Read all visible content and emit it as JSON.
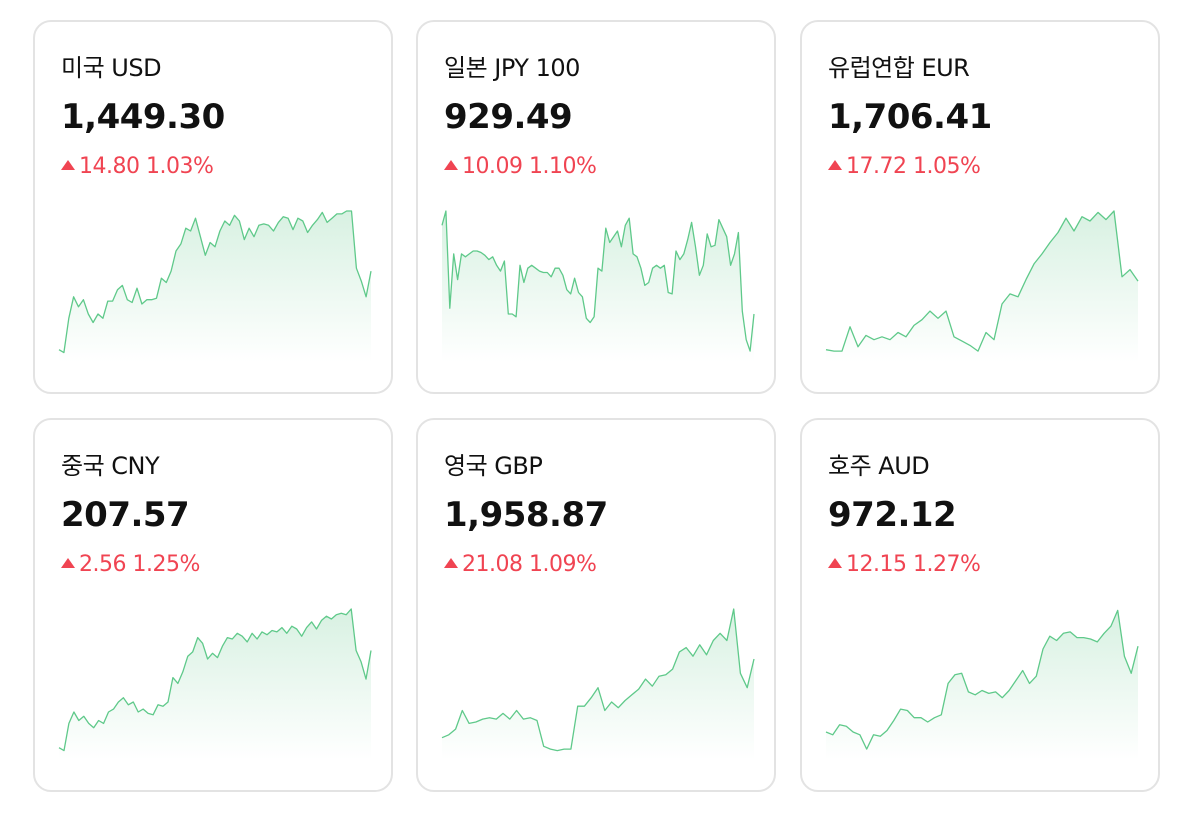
{
  "cards": [
    {
      "name": "미국 USD",
      "price": "1,449.30",
      "change_amount": "14.80",
      "change_percent": "1.03%",
      "direction_icon": "triangle-up-icon",
      "trend": [
        0.03,
        0.01,
        0.25,
        0.4,
        0.33,
        0.38,
        0.28,
        0.22,
        0.28,
        0.25,
        0.37,
        0.37,
        0.45,
        0.48,
        0.38,
        0.36,
        0.46,
        0.35,
        0.38,
        0.38,
        0.39,
        0.53,
        0.5,
        0.58,
        0.72,
        0.77,
        0.88,
        0.86,
        0.95,
        0.82,
        0.69,
        0.78,
        0.75,
        0.86,
        0.93,
        0.9,
        0.97,
        0.93,
        0.8,
        0.88,
        0.82,
        0.9,
        0.91,
        0.9,
        0.86,
        0.92,
        0.96,
        0.95,
        0.87,
        0.95,
        0.93,
        0.85,
        0.9,
        0.94,
        0.99,
        0.92,
        0.95,
        0.98,
        0.98,
        1.0,
        1.0,
        0.6,
        0.51,
        0.4,
        0.58
      ]
    },
    {
      "name": "일본 JPY 100",
      "price": "929.49",
      "change_amount": "10.09",
      "change_percent": "1.10%",
      "direction_icon": "triangle-up-icon",
      "trend": [
        0.9,
        1.0,
        0.32,
        0.7,
        0.52,
        0.7,
        0.68,
        0.7,
        0.72,
        0.72,
        0.71,
        0.69,
        0.66,
        0.68,
        0.62,
        0.58,
        0.65,
        0.28,
        0.28,
        0.26,
        0.62,
        0.5,
        0.6,
        0.62,
        0.6,
        0.58,
        0.57,
        0.57,
        0.54,
        0.6,
        0.6,
        0.55,
        0.45,
        0.42,
        0.53,
        0.43,
        0.4,
        0.25,
        0.22,
        0.26,
        0.6,
        0.58,
        0.88,
        0.78,
        0.82,
        0.86,
        0.75,
        0.9,
        0.95,
        0.7,
        0.68,
        0.6,
        0.48,
        0.5,
        0.6,
        0.62,
        0.6,
        0.62,
        0.43,
        0.42,
        0.72,
        0.66,
        0.7,
        0.8,
        0.92,
        0.75,
        0.55,
        0.62,
        0.84,
        0.75,
        0.76,
        0.94,
        0.88,
        0.82,
        0.62,
        0.7,
        0.85,
        0.3,
        0.1,
        0.02,
        0.28
      ]
    },
    {
      "name": "유럽연합 EUR",
      "price": "1,706.41",
      "change_amount": "17.72",
      "change_percent": "1.05%",
      "direction_icon": "triangle-up-icon",
      "trend": [
        0.03,
        0.02,
        0.02,
        0.19,
        0.05,
        0.13,
        0.1,
        0.12,
        0.1,
        0.15,
        0.12,
        0.2,
        0.24,
        0.3,
        0.25,
        0.3,
        0.12,
        0.09,
        0.06,
        0.02,
        0.15,
        0.1,
        0.35,
        0.42,
        0.4,
        0.52,
        0.63,
        0.7,
        0.78,
        0.85,
        0.95,
        0.86,
        0.96,
        0.93,
        0.99,
        0.94,
        1.0,
        0.54,
        0.59,
        0.51
      ]
    },
    {
      "name": "중국 CNY",
      "price": "207.57",
      "change_amount": "2.56",
      "change_percent": "1.25%",
      "direction_icon": "triangle-up-icon",
      "trend": [
        0.03,
        0.01,
        0.2,
        0.28,
        0.22,
        0.25,
        0.2,
        0.17,
        0.22,
        0.2,
        0.28,
        0.3,
        0.35,
        0.38,
        0.33,
        0.35,
        0.28,
        0.3,
        0.27,
        0.26,
        0.33,
        0.32,
        0.35,
        0.52,
        0.48,
        0.56,
        0.67,
        0.7,
        0.8,
        0.76,
        0.65,
        0.69,
        0.66,
        0.74,
        0.8,
        0.79,
        0.83,
        0.81,
        0.77,
        0.83,
        0.79,
        0.84,
        0.82,
        0.85,
        0.84,
        0.87,
        0.83,
        0.88,
        0.86,
        0.81,
        0.87,
        0.91,
        0.86,
        0.92,
        0.95,
        0.93,
        0.96,
        0.97,
        0.96,
        1.0,
        0.71,
        0.63,
        0.51,
        0.71
      ]
    },
    {
      "name": "영국 GBP",
      "price": "1,958.87",
      "change_amount": "21.08",
      "change_percent": "1.09%",
      "direction_icon": "triangle-up-icon",
      "trend": [
        0.1,
        0.12,
        0.16,
        0.29,
        0.2,
        0.21,
        0.23,
        0.24,
        0.23,
        0.27,
        0.23,
        0.29,
        0.23,
        0.24,
        0.22,
        0.04,
        0.02,
        0.01,
        0.02,
        0.02,
        0.32,
        0.32,
        0.38,
        0.45,
        0.29,
        0.35,
        0.31,
        0.36,
        0.4,
        0.44,
        0.51,
        0.46,
        0.53,
        0.54,
        0.58,
        0.7,
        0.73,
        0.67,
        0.75,
        0.68,
        0.78,
        0.83,
        0.78,
        1.0,
        0.55,
        0.45,
        0.65
      ]
    },
    {
      "name": "호주 AUD",
      "price": "972.12",
      "change_amount": "12.15",
      "change_percent": "1.27%",
      "direction_icon": "triangle-up-icon",
      "trend": [
        0.14,
        0.12,
        0.19,
        0.18,
        0.14,
        0.12,
        0.02,
        0.12,
        0.11,
        0.15,
        0.22,
        0.3,
        0.29,
        0.24,
        0.24,
        0.21,
        0.24,
        0.26,
        0.48,
        0.54,
        0.55,
        0.42,
        0.4,
        0.43,
        0.41,
        0.42,
        0.38,
        0.43,
        0.5,
        0.57,
        0.48,
        0.53,
        0.72,
        0.81,
        0.78,
        0.83,
        0.84,
        0.8,
        0.8,
        0.79,
        0.77,
        0.83,
        0.88,
        0.99,
        0.67,
        0.55,
        0.74
      ]
    }
  ],
  "colors": {
    "up": "#f04452",
    "spark_line": "#5fc98a",
    "spark_fill": "#d8f1e2",
    "card_border": "#e3e3e3"
  }
}
